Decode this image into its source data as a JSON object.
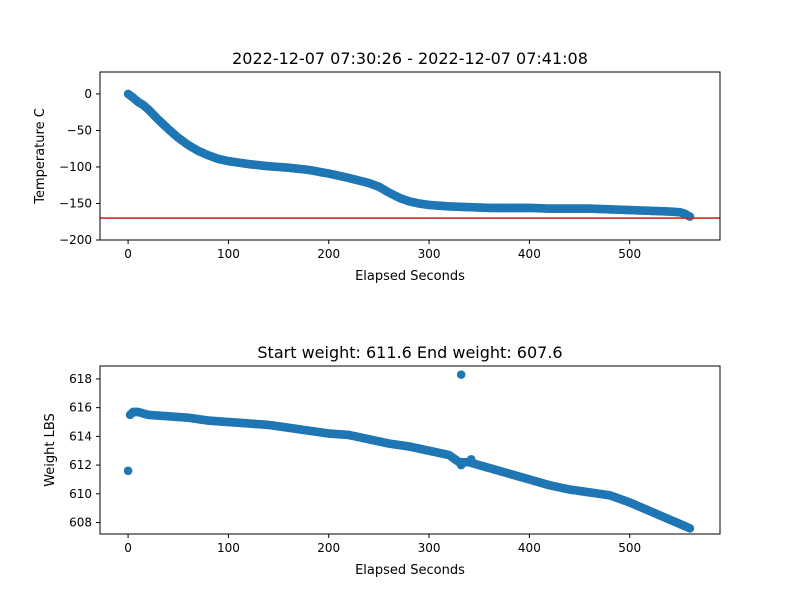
{
  "chart_data": [
    {
      "type": "scatter",
      "title": "2022-12-07 07:30:26 - 2022-12-07 07:41:08",
      "xlabel": "Elapsed Seconds",
      "ylabel": "Temperature C",
      "xlim": [
        -28,
        590
      ],
      "ylim": [
        -200,
        30
      ],
      "xticks": [
        0,
        100,
        200,
        300,
        400,
        500
      ],
      "yticks": [
        0,
        -50,
        -100,
        -150,
        -200
      ],
      "grid": false,
      "marker_color": "#1f77b4",
      "reference_line": {
        "y": -170,
        "color": "#d62728"
      },
      "curve": {
        "x": [
          0,
          5,
          10,
          15,
          20,
          30,
          40,
          50,
          60,
          70,
          80,
          90,
          100,
          120,
          140,
          160,
          180,
          200,
          220,
          240,
          250,
          260,
          270,
          280,
          290,
          300,
          320,
          340,
          360,
          380,
          400,
          420,
          440,
          460,
          480,
          500,
          520,
          540,
          550,
          555,
          560
        ],
        "y": [
          0,
          -5,
          -11,
          -15,
          -21,
          -35,
          -48,
          -60,
          -70,
          -78,
          -84,
          -89,
          -92,
          -96,
          -99,
          -101,
          -104,
          -109,
          -115,
          -122,
          -127,
          -135,
          -142,
          -147,
          -150,
          -152,
          -154,
          -155,
          -156,
          -156,
          -156,
          -157,
          -157,
          -157,
          -158,
          -159,
          -160,
          -161,
          -162,
          -164,
          -168
        ]
      }
    },
    {
      "type": "scatter",
      "title": "Start weight: 611.6 End weight: 607.6",
      "xlabel": "Elapsed Seconds",
      "ylabel": "Weight LBS",
      "xlim": [
        -28,
        590
      ],
      "ylim": [
        607.2,
        618.9
      ],
      "xticks": [
        0,
        100,
        200,
        300,
        400,
        500
      ],
      "yticks": [
        608,
        610,
        612,
        614,
        616,
        618
      ],
      "grid": false,
      "marker_color": "#1f77b4",
      "curve": {
        "x": [
          2,
          5,
          10,
          20,
          40,
          60,
          80,
          100,
          120,
          140,
          160,
          180,
          200,
          220,
          240,
          260,
          280,
          300,
          320,
          330,
          340,
          360,
          380,
          400,
          420,
          440,
          460,
          480,
          500,
          520,
          540,
          560
        ],
        "y": [
          615.5,
          615.7,
          615.7,
          615.5,
          615.4,
          615.3,
          615.1,
          615.0,
          614.9,
          614.8,
          614.6,
          614.4,
          614.2,
          614.1,
          613.8,
          613.5,
          613.3,
          613.0,
          612.7,
          612.2,
          612.2,
          611.8,
          611.4,
          611.0,
          610.6,
          610.3,
          610.1,
          609.9,
          609.4,
          608.8,
          608.2,
          607.6
        ]
      },
      "outliers": [
        {
          "x": 0,
          "y": 611.6
        },
        {
          "x": 332,
          "y": 618.3
        },
        {
          "x": 332,
          "y": 612.0
        },
        {
          "x": 342,
          "y": 612.4
        }
      ]
    }
  ]
}
